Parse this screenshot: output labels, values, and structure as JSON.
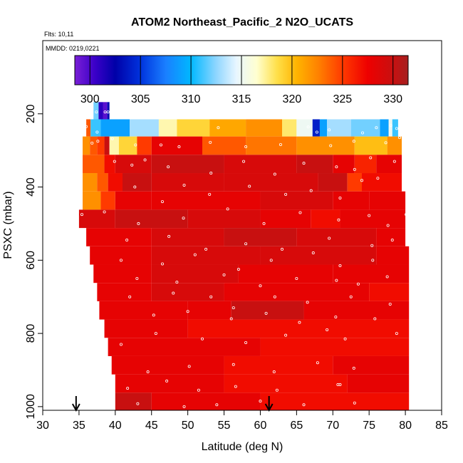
{
  "chart_data": {
    "type": "heatmap",
    "title": "ATOM2 Northeast_Pacific_2 N2O_UCATS",
    "flights_label": "Flts: 10,11",
    "dates_label": "MMDD: 0219,0221",
    "xlabel": "Latitude (deg N)",
    "ylabel": "PSXC (mbar)",
    "xlim": [
      30,
      85
    ],
    "ylim": [
      1010,
      0
    ],
    "x_ticks": [
      30,
      35,
      40,
      45,
      50,
      55,
      60,
      65,
      70,
      75,
      80,
      85
    ],
    "y_ticks": [
      200,
      400,
      600,
      800,
      1000
    ],
    "colorbar": {
      "min": 298.5,
      "max": 331.5,
      "ticks": [
        300,
        305,
        310,
        315,
        320,
        325,
        330
      ],
      "stops": [
        {
          "v": 298.5,
          "c": "#7a1fd6"
        },
        {
          "v": 300.5,
          "c": "#3a00c8"
        },
        {
          "v": 302.5,
          "c": "#0000a8"
        },
        {
          "v": 305.0,
          "c": "#0033dd"
        },
        {
          "v": 307.5,
          "c": "#1a7fff"
        },
        {
          "v": 310.0,
          "c": "#00b8ff"
        },
        {
          "v": 312.5,
          "c": "#8fd6ff"
        },
        {
          "v": 314.5,
          "c": "#e8f6ff"
        },
        {
          "v": 316.5,
          "c": "#ffffd0"
        },
        {
          "v": 318.5,
          "c": "#ffe04a"
        },
        {
          "v": 320.5,
          "c": "#ffb300"
        },
        {
          "v": 322.5,
          "c": "#ff8400"
        },
        {
          "v": 325.0,
          "c": "#ff3a00"
        },
        {
          "v": 327.5,
          "c": "#ee0000"
        },
        {
          "v": 330.0,
          "c": "#c81010"
        },
        {
          "v": 331.5,
          "c": "#a62020"
        }
      ]
    },
    "rows": [
      {
        "p": [
          168,
          215
        ],
        "segments": [
          {
            "x0": 37.0,
            "x1": 37.7,
            "v": 312
          },
          {
            "x0": 37.7,
            "x1": 38.3,
            "v": 301
          },
          {
            "x0": 38.3,
            "x1": 38.9,
            "v": 299.5
          },
          {
            "x0": 38.9,
            "x1": 39.2,
            "v": 303
          }
        ]
      },
      {
        "p": [
          215,
          262
        ],
        "segments": [
          {
            "x0": 36.0,
            "x1": 36.6,
            "v": 324
          },
          {
            "x0": 36.6,
            "x1": 38.0,
            "v": 311
          },
          {
            "x0": 38.0,
            "x1": 42.0,
            "v": 309
          },
          {
            "x0": 42.0,
            "x1": 46.0,
            "v": 313
          },
          {
            "x0": 46.0,
            "x1": 48.5,
            "v": 317
          },
          {
            "x0": 48.5,
            "x1": 53.0,
            "v": 319
          },
          {
            "x0": 53.0,
            "x1": 58.0,
            "v": 321
          },
          {
            "x0": 58.0,
            "x1": 63.0,
            "v": 322
          },
          {
            "x0": 63.0,
            "x1": 65.0,
            "v": 318
          },
          {
            "x0": 65.0,
            "x1": 67.2,
            "v": 315
          },
          {
            "x0": 67.2,
            "x1": 68.2,
            "v": 304
          },
          {
            "x0": 68.2,
            "x1": 69.2,
            "v": 309
          },
          {
            "x0": 69.2,
            "x1": 72.5,
            "v": 313
          },
          {
            "x0": 72.5,
            "x1": 76.5,
            "v": 312
          },
          {
            "x0": 76.5,
            "x1": 77.7,
            "v": 309
          },
          {
            "x0": 77.7,
            "x1": 78.2,
            "v": 315
          },
          {
            "x0": 78.2,
            "x1": 79.0,
            "v": 311
          }
        ]
      },
      {
        "p": [
          262,
          312
        ],
        "segments": [
          {
            "x0": 35.5,
            "x1": 36.5,
            "v": 322
          },
          {
            "x0": 36.5,
            "x1": 37.5,
            "v": 324
          },
          {
            "x0": 37.5,
            "x1": 38.5,
            "v": 325
          },
          {
            "x0": 38.5,
            "x1": 39.2,
            "v": 330
          },
          {
            "x0": 39.2,
            "x1": 40.5,
            "v": 317
          },
          {
            "x0": 40.5,
            "x1": 43.0,
            "v": 319
          },
          {
            "x0": 43.0,
            "x1": 45.0,
            "v": 325
          },
          {
            "x0": 45.0,
            "x1": 52.0,
            "v": 328
          },
          {
            "x0": 52.0,
            "x1": 58.0,
            "v": 324
          },
          {
            "x0": 58.0,
            "x1": 65.0,
            "v": 323
          },
          {
            "x0": 65.0,
            "x1": 73.0,
            "v": 322
          },
          {
            "x0": 73.0,
            "x1": 77.5,
            "v": 320
          },
          {
            "x0": 77.5,
            "x1": 79.5,
            "v": 322
          }
        ]
      },
      {
        "p": [
          312,
          362
        ],
        "segments": [
          {
            "x0": 35.5,
            "x1": 38.5,
            "v": 324
          },
          {
            "x0": 38.5,
            "x1": 40.0,
            "v": 327
          },
          {
            "x0": 40.0,
            "x1": 45.0,
            "v": 329
          },
          {
            "x0": 45.0,
            "x1": 55.0,
            "v": 330
          },
          {
            "x0": 55.0,
            "x1": 65.0,
            "v": 329
          },
          {
            "x0": 65.0,
            "x1": 70.0,
            "v": 330
          },
          {
            "x0": 70.0,
            "x1": 73.0,
            "v": 328
          },
          {
            "x0": 73.0,
            "x1": 76.0,
            "v": 326
          },
          {
            "x0": 76.0,
            "x1": 79.5,
            "v": 328
          }
        ]
      },
      {
        "p": [
          362,
          412
        ],
        "segments": [
          {
            "x0": 35.5,
            "x1": 37.5,
            "v": 322
          },
          {
            "x0": 37.5,
            "x1": 39.0,
            "v": 324
          },
          {
            "x0": 39.0,
            "x1": 41.0,
            "v": 327
          },
          {
            "x0": 41.0,
            "x1": 45.0,
            "v": 330
          },
          {
            "x0": 45.0,
            "x1": 55.0,
            "v": 329
          },
          {
            "x0": 55.0,
            "x1": 68.0,
            "v": 329
          },
          {
            "x0": 68.0,
            "x1": 72.0,
            "v": 330
          },
          {
            "x0": 72.0,
            "x1": 74.0,
            "v": 325
          },
          {
            "x0": 74.0,
            "x1": 79.5,
            "v": 327
          }
        ]
      },
      {
        "p": [
          412,
          462
        ],
        "segments": [
          {
            "x0": 35.5,
            "x1": 38.0,
            "v": 322
          },
          {
            "x0": 38.0,
            "x1": 40.0,
            "v": 325
          },
          {
            "x0": 40.0,
            "x1": 45.0,
            "v": 328
          },
          {
            "x0": 45.0,
            "x1": 60.0,
            "v": 328
          },
          {
            "x0": 60.0,
            "x1": 70.0,
            "v": 329
          },
          {
            "x0": 70.0,
            "x1": 75.0,
            "v": 328
          },
          {
            "x0": 75.0,
            "x1": 80.0,
            "v": 328
          }
        ]
      },
      {
        "p": [
          462,
          512
        ],
        "segments": [
          {
            "x0": 35.0,
            "x1": 40.0,
            "v": 329
          },
          {
            "x0": 40.0,
            "x1": 50.0,
            "v": 330
          },
          {
            "x0": 50.0,
            "x1": 60.0,
            "v": 329
          },
          {
            "x0": 60.0,
            "x1": 67.0,
            "v": 328
          },
          {
            "x0": 67.0,
            "x1": 71.0,
            "v": 327
          },
          {
            "x0": 71.0,
            "x1": 80.0,
            "v": 328
          }
        ]
      },
      {
        "p": [
          512,
          562
        ],
        "segments": [
          {
            "x0": 36.0,
            "x1": 45.0,
            "v": 328
          },
          {
            "x0": 45.0,
            "x1": 55.0,
            "v": 329
          },
          {
            "x0": 55.0,
            "x1": 65.0,
            "v": 330
          },
          {
            "x0": 65.0,
            "x1": 76.0,
            "v": 329
          },
          {
            "x0": 76.0,
            "x1": 80.0,
            "v": 328
          }
        ]
      },
      {
        "p": [
          562,
          612
        ],
        "segments": [
          {
            "x0": 36.5,
            "x1": 45.0,
            "v": 328
          },
          {
            "x0": 45.0,
            "x1": 60.0,
            "v": 329
          },
          {
            "x0": 60.0,
            "x1": 76.0,
            "v": 329
          },
          {
            "x0": 76.0,
            "x1": 80.5,
            "v": 328
          }
        ]
      },
      {
        "p": [
          612,
          662
        ],
        "segments": [
          {
            "x0": 37.0,
            "x1": 45.0,
            "v": 328
          },
          {
            "x0": 45.0,
            "x1": 57.0,
            "v": 329
          },
          {
            "x0": 57.0,
            "x1": 70.0,
            "v": 328
          },
          {
            "x0": 70.0,
            "x1": 80.5,
            "v": 328
          }
        ]
      },
      {
        "p": [
          662,
          712
        ],
        "segments": [
          {
            "x0": 37.5,
            "x1": 45.0,
            "v": 328
          },
          {
            "x0": 45.0,
            "x1": 55.0,
            "v": 329
          },
          {
            "x0": 55.0,
            "x1": 75.0,
            "v": 328
          },
          {
            "x0": 75.0,
            "x1": 80.5,
            "v": 327
          }
        ]
      },
      {
        "p": [
          712,
          762
        ],
        "segments": [
          {
            "x0": 37.8,
            "x1": 50.0,
            "v": 328
          },
          {
            "x0": 50.0,
            "x1": 56.0,
            "v": 328
          },
          {
            "x0": 56.0,
            "x1": 66.0,
            "v": 330
          },
          {
            "x0": 66.0,
            "x1": 80.5,
            "v": 328
          }
        ]
      },
      {
        "p": [
          762,
          812
        ],
        "segments": [
          {
            "x0": 38.5,
            "x1": 50.0,
            "v": 328
          },
          {
            "x0": 50.0,
            "x1": 80.5,
            "v": 327
          }
        ]
      },
      {
        "p": [
          812,
          862
        ],
        "segments": [
          {
            "x0": 39.0,
            "x1": 60.0,
            "v": 328
          },
          {
            "x0": 60.0,
            "x1": 80.5,
            "v": 327
          }
        ]
      },
      {
        "p": [
          862,
          912
        ],
        "segments": [
          {
            "x0": 39.5,
            "x1": 55.0,
            "v": 328
          },
          {
            "x0": 55.0,
            "x1": 70.0,
            "v": 327
          },
          {
            "x0": 70.0,
            "x1": 80.5,
            "v": 328
          }
        ]
      },
      {
        "p": [
          912,
          962
        ],
        "segments": [
          {
            "x0": 40.0,
            "x1": 55.0,
            "v": 328
          },
          {
            "x0": 55.0,
            "x1": 72.0,
            "v": 327
          },
          {
            "x0": 72.0,
            "x1": 80.5,
            "v": 328
          }
        ]
      },
      {
        "p": [
          962,
          1010
        ],
        "segments": [
          {
            "x0": 40.0,
            "x1": 45.0,
            "v": 330
          },
          {
            "x0": 45.0,
            "x1": 60.0,
            "v": 328
          },
          {
            "x0": 60.0,
            "x1": 80.5,
            "v": 327
          }
        ]
      }
    ],
    "points": [
      [
        37.4,
        195
      ],
      [
        38.6,
        195
      ],
      [
        39.0,
        195
      ],
      [
        36.0,
        235
      ],
      [
        37.5,
        250
      ],
      [
        54.2,
        238
      ],
      [
        66.6,
        236
      ],
      [
        67.8,
        250
      ],
      [
        69.5,
        244
      ],
      [
        74.1,
        252
      ],
      [
        76.0,
        238
      ],
      [
        78.0,
        232
      ],
      [
        78.8,
        240
      ],
      [
        79.2,
        242
      ],
      [
        36.8,
        280
      ],
      [
        37.6,
        275
      ],
      [
        39.6,
        268
      ],
      [
        42.8,
        285
      ],
      [
        46.3,
        285
      ],
      [
        48.8,
        290
      ],
      [
        53.1,
        278
      ],
      [
        58.0,
        290
      ],
      [
        62.8,
        284
      ],
      [
        69.7,
        287
      ],
      [
        72.9,
        275
      ],
      [
        77.3,
        279
      ],
      [
        79.2,
        265
      ],
      [
        39.9,
        330
      ],
      [
        42.3,
        340
      ],
      [
        44.1,
        326
      ],
      [
        47.3,
        345
      ],
      [
        53.2,
        362
      ],
      [
        57.7,
        330
      ],
      [
        62.0,
        365
      ],
      [
        66.0,
        335
      ],
      [
        70.5,
        345
      ],
      [
        73.0,
        352
      ],
      [
        75.2,
        320
      ],
      [
        76.2,
        376
      ],
      [
        78.5,
        330
      ],
      [
        42.7,
        400
      ],
      [
        46.5,
        440
      ],
      [
        49.5,
        395
      ],
      [
        53.0,
        420
      ],
      [
        58.5,
        398
      ],
      [
        63.5,
        420
      ],
      [
        67.0,
        410
      ],
      [
        71.0,
        430
      ],
      [
        74.0,
        382
      ],
      [
        35.4,
        475
      ],
      [
        38.5,
        468
      ],
      [
        43.2,
        500
      ],
      [
        49.4,
        485
      ],
      [
        55.5,
        460
      ],
      [
        60.5,
        500
      ],
      [
        65.5,
        470
      ],
      [
        70.8,
        490
      ],
      [
        75.0,
        478
      ],
      [
        77.6,
        505
      ],
      [
        80.1,
        475
      ],
      [
        41.6,
        545
      ],
      [
        47.4,
        535
      ],
      [
        52.5,
        570
      ],
      [
        58.0,
        555
      ],
      [
        63.0,
        570
      ],
      [
        69.5,
        540
      ],
      [
        75.4,
        560
      ],
      [
        78.2,
        545
      ],
      [
        40.8,
        600
      ],
      [
        46.5,
        610
      ],
      [
        51.0,
        585
      ],
      [
        57.0,
        625
      ],
      [
        61.5,
        600
      ],
      [
        67.3,
        580
      ],
      [
        71.0,
        615
      ],
      [
        75.5,
        600
      ],
      [
        43.0,
        650
      ],
      [
        48.5,
        660
      ],
      [
        55.0,
        640
      ],
      [
        60.0,
        670
      ],
      [
        65.0,
        650
      ],
      [
        70.5,
        655
      ],
      [
        73.5,
        665
      ],
      [
        77.5,
        645
      ],
      [
        42.0,
        700
      ],
      [
        48.0,
        690
      ],
      [
        53.2,
        700
      ],
      [
        56.3,
        730
      ],
      [
        62.0,
        700
      ],
      [
        66.5,
        715
      ],
      [
        72.5,
        700
      ],
      [
        77.9,
        720
      ],
      [
        45.3,
        750
      ],
      [
        50.0,
        740
      ],
      [
        56.0,
        760
      ],
      [
        60.8,
        745
      ],
      [
        65.4,
        770
      ],
      [
        70.4,
        755
      ],
      [
        75.8,
        760
      ],
      [
        40.8,
        830
      ],
      [
        45.6,
        800
      ],
      [
        52.0,
        815
      ],
      [
        58.0,
        825
      ],
      [
        63.5,
        805
      ],
      [
        69.2,
        790
      ],
      [
        71.7,
        815
      ],
      [
        78.8,
        800
      ],
      [
        44.5,
        905
      ],
      [
        50.2,
        890
      ],
      [
        56.3,
        885
      ],
      [
        61.9,
        905
      ],
      [
        67.9,
        880
      ],
      [
        72.9,
        895
      ],
      [
        41.7,
        950
      ],
      [
        47.1,
        930
      ],
      [
        51.5,
        955
      ],
      [
        56.6,
        945
      ],
      [
        62.3,
        955
      ],
      [
        70.7,
        940
      ],
      [
        71.0,
        940
      ],
      [
        43.1,
        992
      ],
      [
        49.5,
        1000
      ],
      [
        54.0,
        995
      ],
      [
        60.0,
        985
      ],
      [
        66.0,
        995
      ],
      [
        73.0,
        990
      ]
    ],
    "markers": [
      {
        "lat": 34.6,
        "label": "flight-start"
      },
      {
        "lat": 61.2,
        "label": "flight-turn"
      }
    ]
  }
}
